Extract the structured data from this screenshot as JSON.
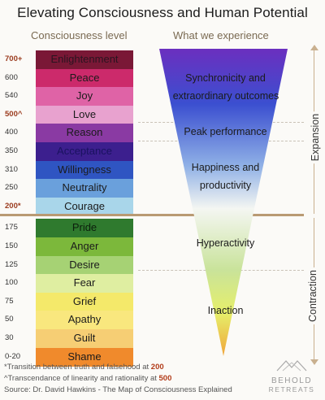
{
  "title": "Elevating Consciousness and Human Potential",
  "headers": {
    "left": "Consciousness level",
    "right": "What we experience"
  },
  "levels": [
    {
      "value": "700+",
      "name": "Enlightenment",
      "color": "#7a1836",
      "text_color": "#2a1420",
      "strong": true
    },
    {
      "value": "600",
      "name": "Peace",
      "color": "#cc2a6b",
      "text_color": "#1b1b1b"
    },
    {
      "value": "540",
      "name": "Joy",
      "color": "#df63a6",
      "text_color": "#1b1b1b"
    },
    {
      "value": "500^",
      "name": "Love",
      "color": "#e8a2cf",
      "text_color": "#1b1b1b",
      "strong": true
    },
    {
      "value": "400",
      "name": "Reason",
      "color": "#8a3aa3",
      "text_color": "#1b1b1b"
    },
    {
      "value": "350",
      "name": "Acceptance",
      "color": "#3c1f8e",
      "text_color": "#1a1260"
    },
    {
      "value": "310",
      "name": "Willingness",
      "color": "#2f55c2",
      "text_color": "#1b1b1b"
    },
    {
      "value": "250",
      "name": "Neutrality",
      "color": "#6aa0dc",
      "text_color": "#1b1b1b"
    },
    {
      "value": "200*",
      "name": "Courage",
      "color": "#a9d6ea",
      "text_color": "#1b1b1b",
      "strong": true
    },
    {
      "value": "175",
      "name": "Pride",
      "color": "#2f7a2e",
      "text_color": "#0c1f0c"
    },
    {
      "value": "150",
      "name": "Anger",
      "color": "#7cb83b",
      "text_color": "#1b1b1b"
    },
    {
      "value": "125",
      "name": "Desire",
      "color": "#a6d274",
      "text_color": "#1b1b1b"
    },
    {
      "value": "100",
      "name": "Fear",
      "color": "#dfeea1",
      "text_color": "#1b1b1b"
    },
    {
      "value": "75",
      "name": "Grief",
      "color": "#f4e96a",
      "text_color": "#1b1b1b"
    },
    {
      "value": "50",
      "name": "Apathy",
      "color": "#f9e77e",
      "text_color": "#1b1b1b"
    },
    {
      "value": "30",
      "name": "Guilt",
      "color": "#f6ce74",
      "text_color": "#1b1b1b"
    },
    {
      "value": "0-20",
      "name": "Shame",
      "color": "#f08a2c",
      "text_color": "#1b1b1b"
    }
  ],
  "experiences": {
    "synchronicity_1": "Synchronicity and",
    "synchronicity_2": "extraordinary outcomes",
    "peak": "Peak performance",
    "happiness_1": "Happiness and",
    "happiness_2": "productivity",
    "hyperactivity": "Hyperactivity",
    "inaction": "Inaction"
  },
  "side_labels": {
    "expansion": "Expansion",
    "contraction": "Contraction"
  },
  "footnotes": {
    "n1_prefix": "*Transition between truth and falsehood at ",
    "n1_value": "200",
    "n2_prefix": "^Transcendance of linearity and rationality at ",
    "n2_value": "500",
    "source": "Source: Dr. David Hawkins - The Map of Consciousness Explained"
  },
  "logo": {
    "line1": "BEHOLD",
    "line2": "RETREATS"
  },
  "funnel_colors": {
    "top": "#6b2fbf",
    "upper": "#3b4fd0",
    "mid": "#8fb0e6",
    "white": "#f4f6f2",
    "lower": "#c9e39a",
    "low2": "#e6ef6a",
    "bottom": "#f0a53a"
  }
}
